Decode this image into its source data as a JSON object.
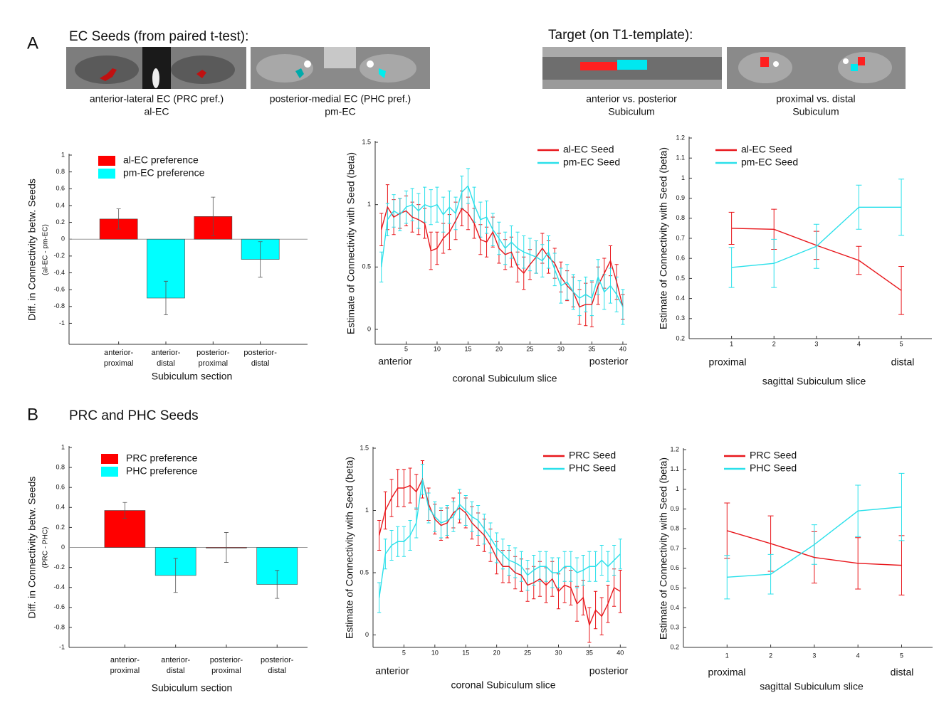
{
  "panel_a": {
    "label": "A",
    "seed_title": "EC Seeds (from paired t-test):",
    "target_title": "Target (on T1-template):",
    "images": [
      {
        "caption": [
          "anterior-lateral EC (PRC pref.)",
          "al-EC"
        ]
      },
      {
        "caption": [
          "posterior-medial EC (PHC pref.)",
          "pm-EC"
        ]
      },
      {
        "caption": [
          "anterior vs. posterior",
          "Subiculum"
        ]
      },
      {
        "caption": [
          "proximal vs. distal",
          "Subiculum"
        ]
      }
    ]
  },
  "panel_b": {
    "label": "B",
    "title": "PRC and PHC Seeds"
  },
  "chart_data": [
    {
      "type": "bar",
      "ylabel": "Diff. in Connectivity betw. Seeds",
      "ylabel_sub": "(al-EC - pm-EC)",
      "xlabel": "Subiculum section",
      "categories": [
        "anterior-proximal",
        "anterior-distal",
        "posterior-proximal",
        "posterior-distal"
      ],
      "values": [
        0.24,
        -0.7,
        0.27,
        -0.24
      ],
      "errors": [
        0.12,
        0.2,
        0.23,
        0.21
      ],
      "colors": [
        "#ff0000",
        "#00ffff",
        "#ff0000",
        "#00ffff"
      ],
      "legend": [
        {
          "name": "al-EC preference",
          "color": "#ff0000"
        },
        {
          "name": "pm-EC preference",
          "color": "#00ffff"
        }
      ],
      "xlim": [
        -0.05,
        5
      ],
      "ylim": [
        -1.25,
        1
      ],
      "yticks": [
        1,
        0.8,
        0.6,
        0.4,
        0.2,
        0,
        -0.2,
        -0.4,
        -0.6,
        -0.8,
        -1
      ]
    },
    {
      "type": "line",
      "ylabel": "Estimate of Connectivity with Seed (beta)",
      "xlabel": "coronal Subiculum slice",
      "x_end_labels": [
        "anterior",
        "posterior"
      ],
      "x": [
        1,
        2,
        3,
        4,
        5,
        6,
        7,
        8,
        9,
        10,
        11,
        12,
        13,
        14,
        15,
        16,
        17,
        18,
        19,
        20,
        21,
        22,
        23,
        24,
        25,
        26,
        27,
        28,
        29,
        30,
        31,
        32,
        33,
        34,
        35,
        36,
        37,
        38,
        39,
        40
      ],
      "series": [
        {
          "name": "al-EC Seed",
          "color": "#e8161b",
          "values": [
            0.8,
            0.98,
            0.9,
            0.93,
            0.95,
            0.9,
            0.88,
            0.85,
            0.63,
            0.65,
            0.73,
            0.78,
            0.87,
            0.97,
            0.93,
            0.85,
            0.72,
            0.7,
            0.78,
            0.65,
            0.6,
            0.62,
            0.5,
            0.45,
            0.52,
            0.58,
            0.65,
            0.58,
            0.53,
            0.42,
            0.35,
            0.3,
            0.18,
            0.2,
            0.2,
            0.35,
            0.45,
            0.55,
            0.38,
            0.18
          ],
          "errors": [
            0.13,
            0.18,
            0.14,
            0.12,
            0.12,
            0.12,
            0.12,
            0.12,
            0.15,
            0.13,
            0.12,
            0.14,
            0.15,
            0.14,
            0.13,
            0.12,
            0.12,
            0.12,
            0.12,
            0.12,
            0.12,
            0.12,
            0.12,
            0.13,
            0.12,
            0.13,
            0.12,
            0.13,
            0.12,
            0.12,
            0.12,
            0.12,
            0.14,
            0.17,
            0.18,
            0.15,
            0.12,
            0.12,
            0.14,
            0.1
          ]
        },
        {
          "name": "pm-EC Seed",
          "color": "#2ae0ea",
          "values": [
            0.5,
            0.88,
            0.95,
            0.92,
            0.98,
            1.0,
            0.95,
            1.0,
            0.98,
            1.0,
            0.92,
            0.98,
            0.93,
            1.1,
            1.15,
            1.0,
            0.88,
            0.9,
            0.8,
            0.73,
            0.65,
            0.7,
            0.65,
            0.62,
            0.6,
            0.58,
            0.55,
            0.62,
            0.48,
            0.35,
            0.38,
            0.3,
            0.25,
            0.28,
            0.25,
            0.42,
            0.3,
            0.35,
            0.28,
            0.18
          ],
          "errors": [
            0.12,
            0.13,
            0.13,
            0.13,
            0.13,
            0.13,
            0.14,
            0.14,
            0.14,
            0.14,
            0.14,
            0.13,
            0.13,
            0.13,
            0.14,
            0.14,
            0.14,
            0.13,
            0.13,
            0.13,
            0.13,
            0.13,
            0.13,
            0.13,
            0.13,
            0.13,
            0.13,
            0.13,
            0.13,
            0.14,
            0.14,
            0.14,
            0.14,
            0.14,
            0.14,
            0.14,
            0.14,
            0.14,
            0.14,
            0.14
          ]
        }
      ],
      "xlim": [
        0,
        40.7
      ],
      "xticks": [
        5,
        10,
        15,
        20,
        25,
        30,
        35,
        40
      ],
      "ylim": [
        -0.12,
        1.5
      ],
      "yticks": [
        0,
        0.5,
        1,
        1.5
      ]
    },
    {
      "type": "line",
      "ylabel": "Estimate of Connectivity with Seed (beta)",
      "xlabel": "sagittal Subiculum slice",
      "x_end_labels": [
        "proximal",
        "distal"
      ],
      "x": [
        1,
        2,
        3,
        4,
        5
      ],
      "series": [
        {
          "name": "al-EC Seed",
          "color": "#e8161b",
          "values": [
            0.75,
            0.745,
            0.665,
            0.59,
            0.44
          ],
          "errors": [
            0.08,
            0.1,
            0.07,
            0.07,
            0.12
          ]
        },
        {
          "name": "pm-EC Seed",
          "color": "#2ae0ea",
          "values": [
            0.555,
            0.575,
            0.66,
            0.855,
            0.855
          ],
          "errors": [
            0.1,
            0.12,
            0.11,
            0.11,
            0.14
          ]
        }
      ],
      "xlim": [
        0,
        5.72
      ],
      "xticks": [
        1,
        2,
        3,
        4,
        5
      ],
      "ylim": [
        0.2,
        1.2
      ],
      "yticks": [
        0.2,
        0.3,
        0.4,
        0.5,
        0.6,
        0.7,
        0.8,
        0.9,
        1,
        1.1,
        1.2
      ]
    },
    {
      "type": "bar",
      "ylabel": "Diff. in Connectivity betw. Seeds",
      "ylabel_sub": "(PRC - PHC)",
      "xlabel": "Subiculum section",
      "categories": [
        "anterior-proximal",
        "anterior-distal",
        "posterior-proximal",
        "posterior-distal"
      ],
      "values": [
        0.37,
        -0.28,
        0.0,
        -0.37
      ],
      "errors": [
        0.08,
        0.17,
        0.15,
        0.14
      ],
      "colors": [
        "#ff0000",
        "#00ffff",
        "#ff0000",
        "#00ffff"
      ],
      "legend": [
        {
          "name": "PRC preference",
          "color": "#ff0000"
        },
        {
          "name": "PHC preference",
          "color": "#00ffff"
        }
      ],
      "xlim": [
        -0.1,
        4.6
      ],
      "ylim": [
        -1,
        1
      ],
      "yticks": [
        1,
        0.8,
        0.6,
        0.4,
        0.2,
        0,
        -0.2,
        -0.4,
        -0.6,
        -0.8,
        -1
      ]
    },
    {
      "type": "line",
      "ylabel": "Estimate of Connectivity with Seed (beta)",
      "xlabel": "coronal Subiculum slice",
      "x_end_labels": [
        "anterior",
        "posterior"
      ],
      "x": [
        1,
        2,
        3,
        4,
        5,
        6,
        7,
        8,
        9,
        10,
        11,
        12,
        13,
        14,
        15,
        16,
        17,
        18,
        19,
        20,
        21,
        22,
        23,
        24,
        25,
        26,
        27,
        28,
        29,
        30,
        31,
        32,
        33,
        34,
        35,
        36,
        37,
        38,
        39,
        40
      ],
      "series": [
        {
          "name": "PRC Seed",
          "color": "#e8161b",
          "values": [
            0.8,
            1.0,
            1.1,
            1.18,
            1.18,
            1.2,
            1.15,
            1.25,
            1.05,
            0.93,
            0.88,
            0.9,
            0.98,
            1.02,
            0.98,
            0.9,
            0.85,
            0.8,
            0.72,
            0.62,
            0.55,
            0.55,
            0.5,
            0.48,
            0.4,
            0.42,
            0.45,
            0.4,
            0.45,
            0.35,
            0.4,
            0.38,
            0.25,
            0.3,
            0.08,
            0.2,
            0.15,
            0.25,
            0.38,
            0.35
          ],
          "errors": [
            0.12,
            0.15,
            0.15,
            0.15,
            0.15,
            0.14,
            0.14,
            0.15,
            0.13,
            0.12,
            0.12,
            0.12,
            0.12,
            0.12,
            0.12,
            0.13,
            0.13,
            0.13,
            0.13,
            0.13,
            0.13,
            0.13,
            0.13,
            0.13,
            0.13,
            0.13,
            0.14,
            0.14,
            0.14,
            0.14,
            0.14,
            0.14,
            0.14,
            0.14,
            0.14,
            0.15,
            0.15,
            0.15,
            0.15,
            0.17
          ]
        },
        {
          "name": "PHC Seed",
          "color": "#2ae0ea",
          "values": [
            0.3,
            0.65,
            0.72,
            0.75,
            0.75,
            0.8,
            0.9,
            1.25,
            1.02,
            0.95,
            0.9,
            0.92,
            0.95,
            1.05,
            1.0,
            0.95,
            0.92,
            0.85,
            0.78,
            0.7,
            0.65,
            0.6,
            0.58,
            0.55,
            0.48,
            0.52,
            0.55,
            0.55,
            0.5,
            0.5,
            0.55,
            0.55,
            0.5,
            0.52,
            0.55,
            0.55,
            0.6,
            0.55,
            0.6,
            0.65
          ],
          "errors": [
            0.12,
            0.12,
            0.12,
            0.12,
            0.12,
            0.12,
            0.12,
            0.12,
            0.12,
            0.12,
            0.12,
            0.12,
            0.12,
            0.12,
            0.12,
            0.12,
            0.12,
            0.12,
            0.12,
            0.12,
            0.12,
            0.12,
            0.12,
            0.12,
            0.12,
            0.12,
            0.12,
            0.12,
            0.12,
            0.12,
            0.12,
            0.12,
            0.12,
            0.12,
            0.12,
            0.12,
            0.12,
            0.12,
            0.12,
            0.12
          ]
        }
      ],
      "xlim": [
        0,
        41
      ],
      "xticks": [
        5,
        10,
        15,
        20,
        25,
        30,
        35,
        40
      ],
      "ylim": [
        -0.1,
        1.5
      ],
      "yticks": [
        0,
        0.5,
        1,
        1.5
      ]
    },
    {
      "type": "line",
      "ylabel": "Estimate of Connectivity with Seed (beta)",
      "xlabel": "sagittal Subiculum slice",
      "x_end_labels": [
        "proximal",
        "distal"
      ],
      "x": [
        1,
        2,
        3,
        4,
        5
      ],
      "series": [
        {
          "name": "PRC Seed",
          "color": "#e8161b",
          "values": [
            0.79,
            0.725,
            0.655,
            0.625,
            0.615
          ],
          "errors": [
            0.14,
            0.14,
            0.13,
            0.13,
            0.15
          ]
        },
        {
          "name": "PHC Seed",
          "color": "#2ae0ea",
          "values": [
            0.555,
            0.57,
            0.72,
            0.89,
            0.91
          ],
          "errors": [
            0.11,
            0.1,
            0.1,
            0.13,
            0.17
          ]
        }
      ],
      "xlim": [
        0,
        5.71
      ],
      "xticks": [
        1,
        2,
        3,
        4,
        5
      ],
      "ylim": [
        0.2,
        1.2
      ],
      "yticks": [
        0.2,
        0.3,
        0.4,
        0.5,
        0.6,
        0.7,
        0.8,
        0.9,
        1,
        1.1,
        1.2
      ]
    }
  ]
}
